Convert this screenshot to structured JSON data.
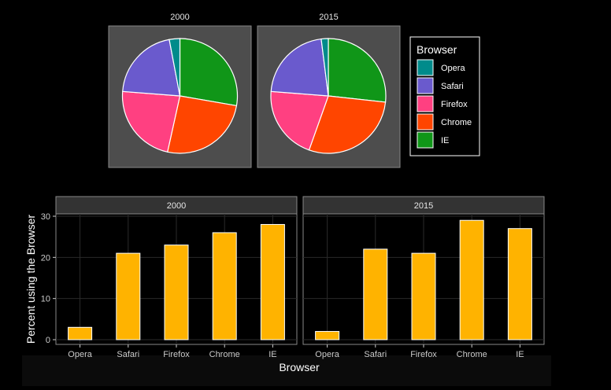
{
  "chart_data": [
    {
      "type": "pie",
      "panels": [
        "2000",
        "2015"
      ],
      "categories": [
        "Opera",
        "Safari",
        "Firefox",
        "Chrome",
        "IE"
      ],
      "series": [
        {
          "panel": "2000",
          "values": [
            3,
            21,
            23,
            26,
            28
          ]
        },
        {
          "panel": "2015",
          "values": [
            2,
            22,
            21,
            29,
            27
          ]
        }
      ],
      "legend": {
        "title": "Browser",
        "entries": [
          "Opera",
          "Safari",
          "Firefox",
          "Chrome",
          "IE"
        ],
        "placement": "right"
      },
      "colors": {
        "Opera": "#008b8b",
        "Safari": "#6a5acd",
        "Firefox": "#ff4081",
        "Chrome": "#ff4500",
        "IE": "#109618"
      }
    },
    {
      "type": "bar",
      "panels": [
        "2000",
        "2015"
      ],
      "categories": [
        "Opera",
        "Safari",
        "Firefox",
        "Chrome",
        "IE"
      ],
      "series": [
        {
          "panel": "2000",
          "values": [
            3,
            21,
            23,
            26,
            28
          ]
        },
        {
          "panel": "2015",
          "values": [
            2,
            22,
            21,
            29,
            27
          ]
        }
      ],
      "xlabel": "Browser",
      "ylabel": "Percent using the Browser",
      "yticks": [
        0,
        10,
        20,
        30
      ],
      "ylim": [
        0,
        30
      ],
      "bar_color": "#ffb300",
      "grid": true
    }
  ]
}
